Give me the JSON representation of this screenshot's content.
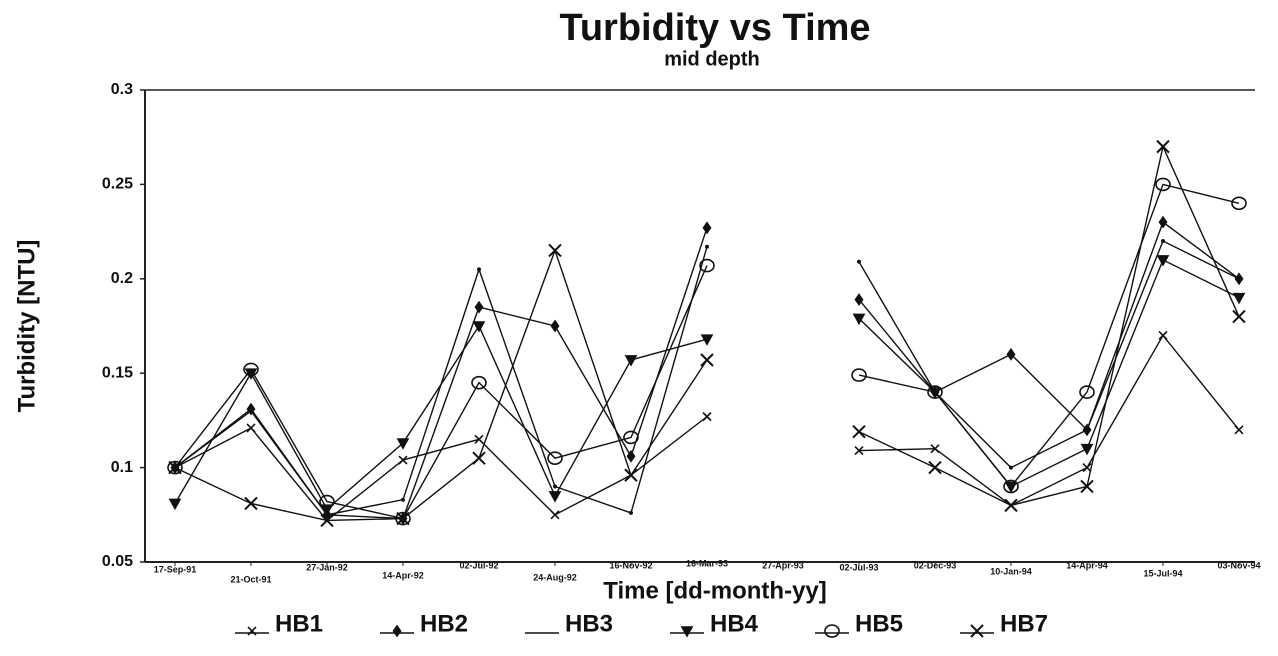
{
  "chart_data": {
    "type": "line",
    "title": "Turbidity vs Time",
    "subtitle": "mid depth",
    "x_label": "Time [dd-month-yy]",
    "y_label": "Turbidity [NTU]",
    "categories": [
      "17-Sep-91",
      "21-Oct-91",
      "27-Jan-92",
      "14-Apr-92",
      "02-Jul-92",
      "24-Aug-92",
      "16-Nov-92",
      "16-Mar-93",
      "27-Apr-93",
      "02-Jul-93",
      "02-Dec-93",
      "10-Jan-94",
      "14-Apr-94",
      "15-Jul-94",
      "03-Nov-94"
    ],
    "series": [
      {
        "name": "HB1",
        "color": "#111111",
        "marker": "x",
        "values": [
          0.1,
          0.121,
          0.072,
          0.104,
          0.115,
          0.075,
          0.096,
          0.127,
          null,
          0.109,
          0.11,
          0.08,
          0.1,
          0.17,
          0.12
        ]
      },
      {
        "name": "HB2",
        "color": "#111111",
        "marker": "diamond",
        "values": [
          0.1,
          0.131,
          0.075,
          0.073,
          0.185,
          0.175,
          0.106,
          0.227,
          null,
          0.189,
          0.14,
          0.16,
          0.12,
          0.23,
          0.2
        ]
      },
      {
        "name": "HB3",
        "color": "#111111",
        "marker": "none",
        "values": [
          0.1,
          0.13,
          0.075,
          0.083,
          0.205,
          0.09,
          0.076,
          0.217,
          null,
          0.209,
          0.14,
          0.1,
          0.12,
          0.22,
          0.2
        ]
      },
      {
        "name": "HB4",
        "color": "#111111",
        "marker": "triangle",
        "values": [
          0.081,
          0.15,
          0.078,
          0.113,
          0.175,
          0.085,
          0.157,
          0.168,
          null,
          0.179,
          0.14,
          0.09,
          0.11,
          0.21,
          0.19
        ]
      },
      {
        "name": "HB5",
        "color": "#111111",
        "marker": "circle",
        "values": [
          0.1,
          0.152,
          0.082,
          0.073,
          0.145,
          0.105,
          0.116,
          0.207,
          null,
          0.149,
          0.14,
          0.09,
          0.14,
          0.25,
          0.24
        ]
      },
      {
        "name": "HB7",
        "color": "#111111",
        "marker": "bigx",
        "values": [
          0.1,
          0.081,
          0.072,
          0.073,
          0.105,
          0.215,
          0.096,
          0.157,
          null,
          0.119,
          0.1,
          0.08,
          0.09,
          0.27,
          0.18
        ]
      }
    ],
    "ylim": [
      0.05,
      0.3
    ],
    "yticks": [
      0.05,
      0.1,
      0.15,
      0.2,
      0.25,
      0.3
    ]
  }
}
